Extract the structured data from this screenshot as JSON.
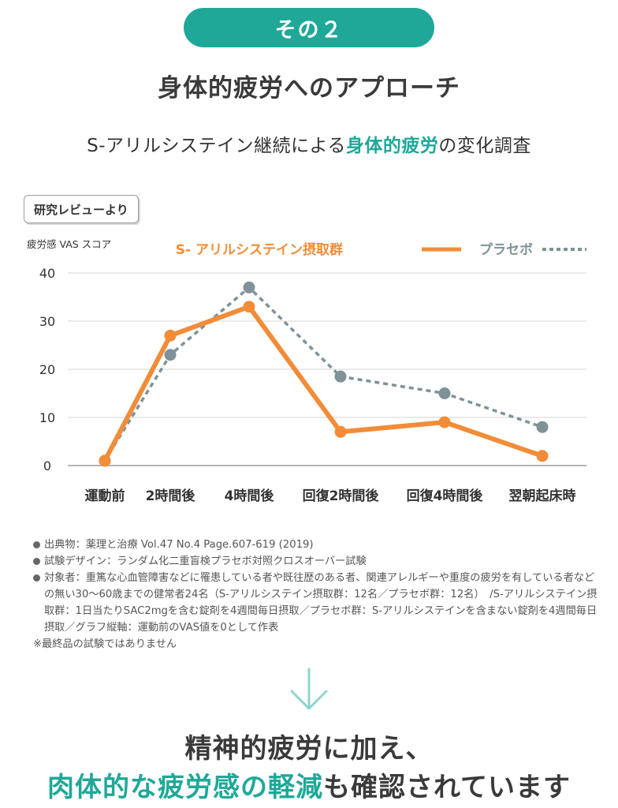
{
  "header": {
    "pill_label": "その２",
    "heading": "身体的疲労へのアプローチ",
    "subheading_pre": "S-アリルシステイン継続による",
    "subheading_highlight": "身体的疲労",
    "subheading_post": "の変化調査"
  },
  "badge": {
    "label": "研究レビューより"
  },
  "colors": {
    "accent": "#1fa898",
    "sac_series": "#f28c38",
    "placebo_series": "#7f9298"
  },
  "chart_data": {
    "type": "line",
    "ylabel": "疲労感 VAS スコア",
    "xlabel": "",
    "ylim": [
      0,
      40
    ],
    "yticks": [
      0,
      10,
      20,
      30,
      40
    ],
    "grid": true,
    "legend_position": "top-right",
    "categories": [
      "運動前",
      "2時間後",
      "4時間後",
      "回復2時間後",
      "回復4時間後",
      "翌朝起床時"
    ],
    "series": [
      {
        "name": "S- アリルシステイン摂取群",
        "style": "solid",
        "color": "#f28c38",
        "values": [
          1,
          27,
          33,
          7,
          9,
          2
        ]
      },
      {
        "name": "プラセボ",
        "style": "dotted",
        "color": "#7f9298",
        "values": [
          1,
          23,
          37,
          18.5,
          15,
          8
        ]
      }
    ]
  },
  "notes": [
    "出典物：薬理と治療 Vol.47 No.4 Page.607-619 (2019)",
    "試験デザイン：ランダム化二重盲検プラセボ対照クロスオーバー試験",
    "対象者：重篤な心血管障害などに罹患している者や既往歴のある者、関連アレルギーや重度の疲労を有している者などの無い30〜60歳までの健常者24名（S-アリルシステイン摂取群：12名／プラセボ群：12名）　/S-アリルシステイン摂取群：1日当たりSAC2mgを含む錠剤を4週間毎日摂取／プラセボ群：S-アリルシステインを含まない錠剤を4週間毎日摂取／グラフ縦軸：運動前のVAS値を0として作表"
  ],
  "footnote": "※最終品の試験ではありません",
  "conclusion": {
    "line1": "精神的疲労に加え、",
    "line2_highlight": "肉体的な疲労感の軽減",
    "line2_post": "も確認されています"
  }
}
